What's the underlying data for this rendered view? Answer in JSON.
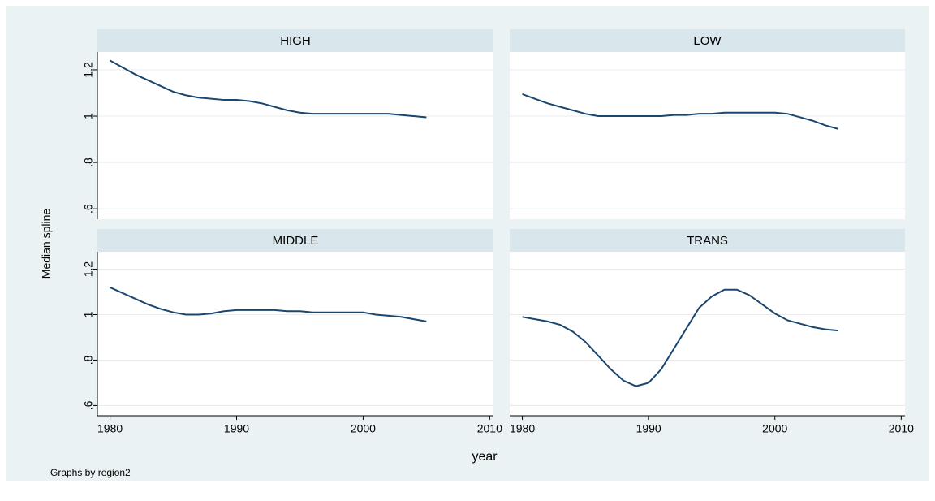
{
  "chart_data": {
    "type": "line",
    "color": "#1a476f",
    "grid": true,
    "y_label": "Median spline",
    "x_label": "year",
    "note": "Graphs by region2",
    "xlim": [
      1979,
      2010.3
    ],
    "xticks": [
      1980,
      1990,
      2000,
      2010
    ],
    "ylim": [
      0.555,
      1.277
    ],
    "yticks": [
      {
        "value": 0.6,
        "label": ".6"
      },
      {
        "value": 0.8,
        "label": ".8"
      },
      1,
      1.2
    ],
    "x": [
      1980,
      1981,
      1982,
      1983,
      1984,
      1985,
      1986,
      1987,
      1988,
      1989,
      1990,
      1991,
      1992,
      1993,
      1994,
      1995,
      1996,
      1997,
      1998,
      1999,
      2000,
      2001,
      2002,
      2003,
      2004,
      2005
    ],
    "panels": [
      {
        "title": "HIGH",
        "values": [
          1.24,
          1.21,
          1.18,
          1.155,
          1.13,
          1.105,
          1.09,
          1.08,
          1.075,
          1.07,
          1.07,
          1.065,
          1.055,
          1.04,
          1.025,
          1.015,
          1.01,
          1.01,
          1.01,
          1.01,
          1.01,
          1.01,
          1.01,
          1.005,
          1.0,
          0.995
        ]
      },
      {
        "title": "LOW",
        "values": [
          1.095,
          1.075,
          1.055,
          1.04,
          1.025,
          1.01,
          1.0,
          1.0,
          1.0,
          1.0,
          1.0,
          1.0,
          1.005,
          1.005,
          1.01,
          1.01,
          1.015,
          1.015,
          1.015,
          1.015,
          1.015,
          1.01,
          0.995,
          0.98,
          0.96,
          0.945
        ]
      },
      {
        "title": "MIDDLE",
        "values": [
          1.12,
          1.095,
          1.07,
          1.045,
          1.025,
          1.01,
          1.0,
          1.0,
          1.005,
          1.015,
          1.02,
          1.02,
          1.02,
          1.02,
          1.015,
          1.015,
          1.01,
          1.01,
          1.01,
          1.01,
          1.01,
          1.0,
          0.995,
          0.99,
          0.98,
          0.97
        ]
      },
      {
        "title": "TRANS",
        "values": [
          0.99,
          0.98,
          0.97,
          0.955,
          0.925,
          0.88,
          0.82,
          0.76,
          0.71,
          0.685,
          0.7,
          0.76,
          0.85,
          0.94,
          1.03,
          1.08,
          1.11,
          1.11,
          1.085,
          1.045,
          1.005,
          0.975,
          0.96,
          0.945,
          0.935,
          0.93
        ]
      }
    ]
  }
}
